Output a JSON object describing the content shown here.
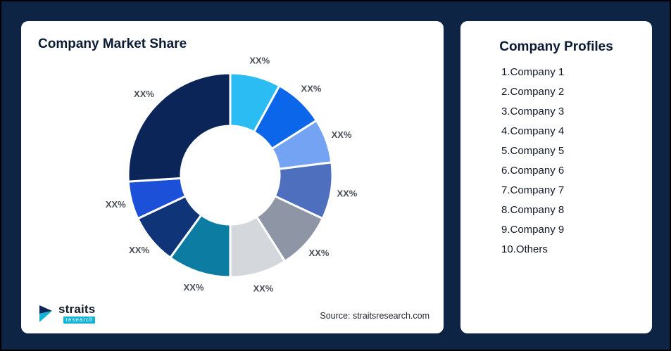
{
  "left_card": {
    "title": "Company Market Share",
    "source": "Source: straitsresearch.com",
    "logo": {
      "name": "straits",
      "sub": "research"
    }
  },
  "right_card": {
    "title": "Company Profiles",
    "items": [
      "1.Company 1",
      "2.Company 2",
      "3.Company 3",
      "4.Company 4",
      "5.Company 5",
      "6.Company 6",
      "7.Company 7",
      "8.Company 8",
      "9.Company 9",
      "10.Others"
    ]
  },
  "chart_data": {
    "type": "pie",
    "variant": "donut",
    "title": "Company Market Share",
    "value_label": "XX%",
    "start_angle_deg": 0,
    "direction": "clockwise",
    "legend": "none",
    "series": [
      {
        "name": "Company 1",
        "label": "XX%",
        "value_pct_est": 8,
        "color": "#2CBCF4"
      },
      {
        "name": "Company 2",
        "label": "XX%",
        "value_pct_est": 8,
        "color": "#0B66EA"
      },
      {
        "name": "Company 3",
        "label": "XX%",
        "value_pct_est": 7,
        "color": "#74A3F3"
      },
      {
        "name": "Company 4",
        "label": "XX%",
        "value_pct_est": 9,
        "color": "#4E6FBE"
      },
      {
        "name": "Company 5",
        "label": "XX%",
        "value_pct_est": 9,
        "color": "#8E96A6"
      },
      {
        "name": "Company 6",
        "label": "XX%",
        "value_pct_est": 9,
        "color": "#D4D7DC"
      },
      {
        "name": "Company 7",
        "label": "XX%",
        "value_pct_est": 10,
        "color": "#0D7CA3"
      },
      {
        "name": "Company 8",
        "label": "XX%",
        "value_pct_est": 8,
        "color": "#0F3478"
      },
      {
        "name": "Company 9",
        "label": "XX%",
        "value_pct_est": 6,
        "color": "#1D50D8"
      },
      {
        "name": "Others",
        "label": "XX%",
        "value_pct_est": 26,
        "color": "#0B2558"
      }
    ]
  }
}
